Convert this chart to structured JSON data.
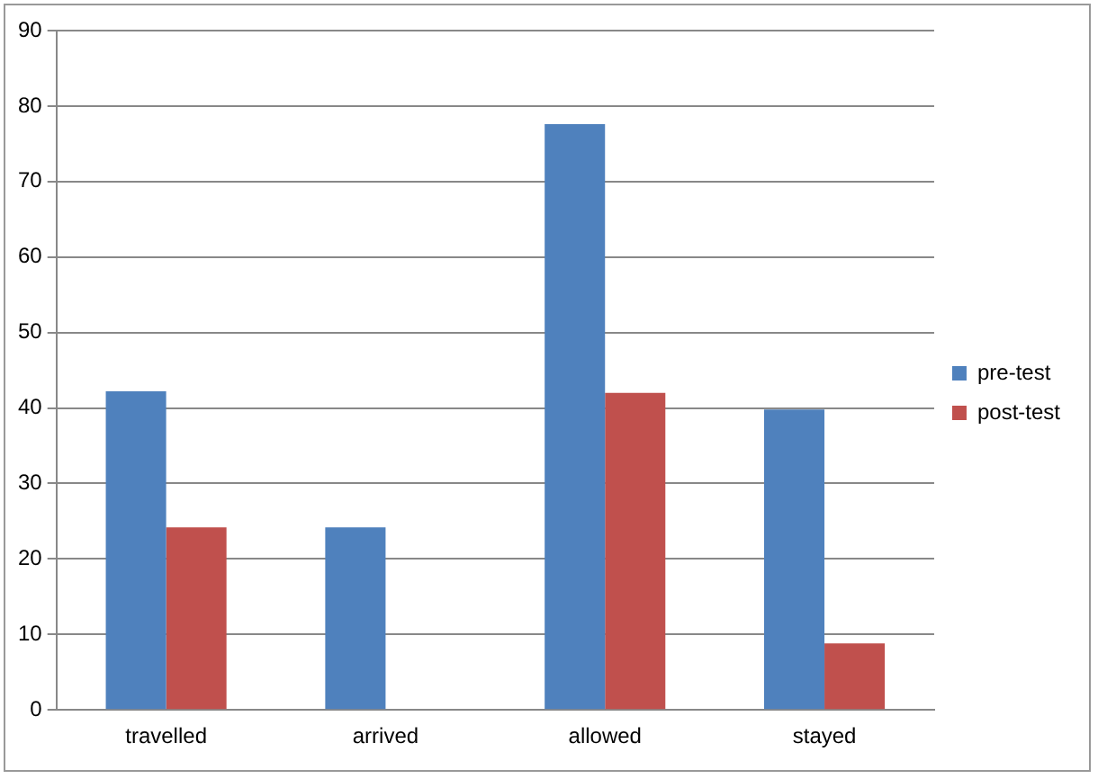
{
  "chart_data": {
    "type": "bar",
    "categories": [
      "travelled",
      "arrived",
      "allowed",
      "stayed"
    ],
    "series": [
      {
        "name": "pre-test",
        "color": "#4f81bd",
        "values": [
          42.2,
          24.2,
          77.6,
          39.8
        ]
      },
      {
        "name": "post-test",
        "color": "#c0504d",
        "values": [
          24.2,
          0,
          42,
          8.8
        ]
      }
    ],
    "ylim": [
      0,
      90
    ],
    "yticks": [
      0,
      10,
      20,
      30,
      40,
      50,
      60,
      70,
      80,
      90
    ],
    "grid": "y",
    "legend": "right"
  }
}
